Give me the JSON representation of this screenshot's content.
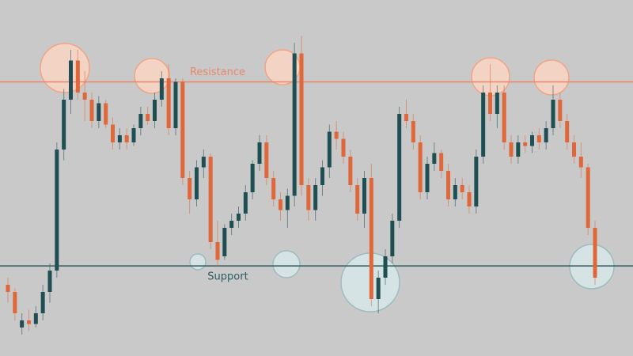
{
  "chart_data": {
    "type": "candlestick",
    "ylim": [
      0,
      100
    ],
    "up_color": "#1f4f52",
    "down_color": "#e0673a",
    "open": [
      20,
      18,
      8,
      10,
      9,
      12,
      18,
      24,
      58,
      72,
      83,
      74,
      72,
      66,
      71,
      65,
      60,
      62,
      60,
      64,
      68,
      66,
      72,
      78,
      64,
      77,
      50,
      44,
      53,
      56,
      32,
      28,
      36,
      38,
      40,
      46,
      54,
      60,
      50,
      44,
      41,
      45,
      85,
      48,
      41,
      48,
      53,
      63,
      61,
      56,
      48,
      40,
      50,
      16,
      22,
      28,
      38,
      68,
      66,
      60,
      46,
      54,
      57,
      52,
      44,
      48,
      46,
      42,
      56,
      74,
      68,
      74,
      60,
      56,
      60,
      59,
      62,
      60,
      64,
      72,
      66,
      60,
      56,
      53,
      36
    ],
    "high": [
      22,
      19,
      12,
      13,
      14,
      20,
      26,
      60,
      75,
      86,
      86,
      80,
      74,
      73,
      72,
      67,
      64,
      64,
      65,
      70,
      70,
      74,
      80,
      82,
      78,
      78,
      52,
      55,
      58,
      57,
      38,
      37,
      40,
      42,
      48,
      55,
      62,
      62,
      52,
      46,
      47,
      88,
      90,
      50,
      50,
      55,
      65,
      66,
      63,
      58,
      50,
      52,
      54,
      24,
      30,
      40,
      70,
      72,
      68,
      62,
      56,
      60,
      58,
      54,
      50,
      50,
      48,
      58,
      76,
      82,
      76,
      76,
      62,
      62,
      62,
      63,
      64,
      66,
      76,
      74,
      68,
      62,
      60,
      54,
      38
    ],
    "low": [
      15,
      10,
      6,
      7,
      8,
      10,
      15,
      22,
      55,
      68,
      72,
      66,
      64,
      64,
      64,
      58,
      58,
      58,
      59,
      62,
      65,
      64,
      70,
      62,
      62,
      48,
      40,
      42,
      50,
      30,
      25,
      27,
      34,
      36,
      38,
      44,
      52,
      48,
      42,
      38,
      36,
      42,
      45,
      38,
      38,
      45,
      50,
      58,
      54,
      46,
      38,
      36,
      14,
      12,
      20,
      26,
      36,
      64,
      58,
      44,
      44,
      52,
      50,
      42,
      42,
      44,
      40,
      40,
      54,
      66,
      64,
      58,
      54,
      54,
      57,
      57,
      58,
      58,
      62,
      64,
      58,
      54,
      50,
      34,
      20
    ],
    "close": [
      18,
      12,
      10,
      9,
      12,
      18,
      24,
      58,
      72,
      83,
      74,
      72,
      66,
      71,
      65,
      60,
      62,
      60,
      64,
      68,
      66,
      72,
      78,
      64,
      77,
      50,
      44,
      53,
      56,
      32,
      27,
      36,
      38,
      40,
      46,
      54,
      60,
      50,
      44,
      41,
      45,
      85,
      48,
      41,
      48,
      53,
      63,
      61,
      56,
      48,
      40,
      50,
      16,
      22,
      28,
      38,
      68,
      66,
      60,
      46,
      54,
      57,
      52,
      44,
      48,
      46,
      42,
      56,
      74,
      68,
      74,
      60,
      56,
      60,
      59,
      62,
      60,
      64,
      72,
      66,
      60,
      56,
      53,
      36,
      22
    ],
    "levels": [
      {
        "label": "Resistance",
        "value": 77,
        "color": "#e8876b"
      },
      {
        "label": "Support",
        "value": 25.3,
        "color": "#2f5b5e"
      }
    ]
  }
}
